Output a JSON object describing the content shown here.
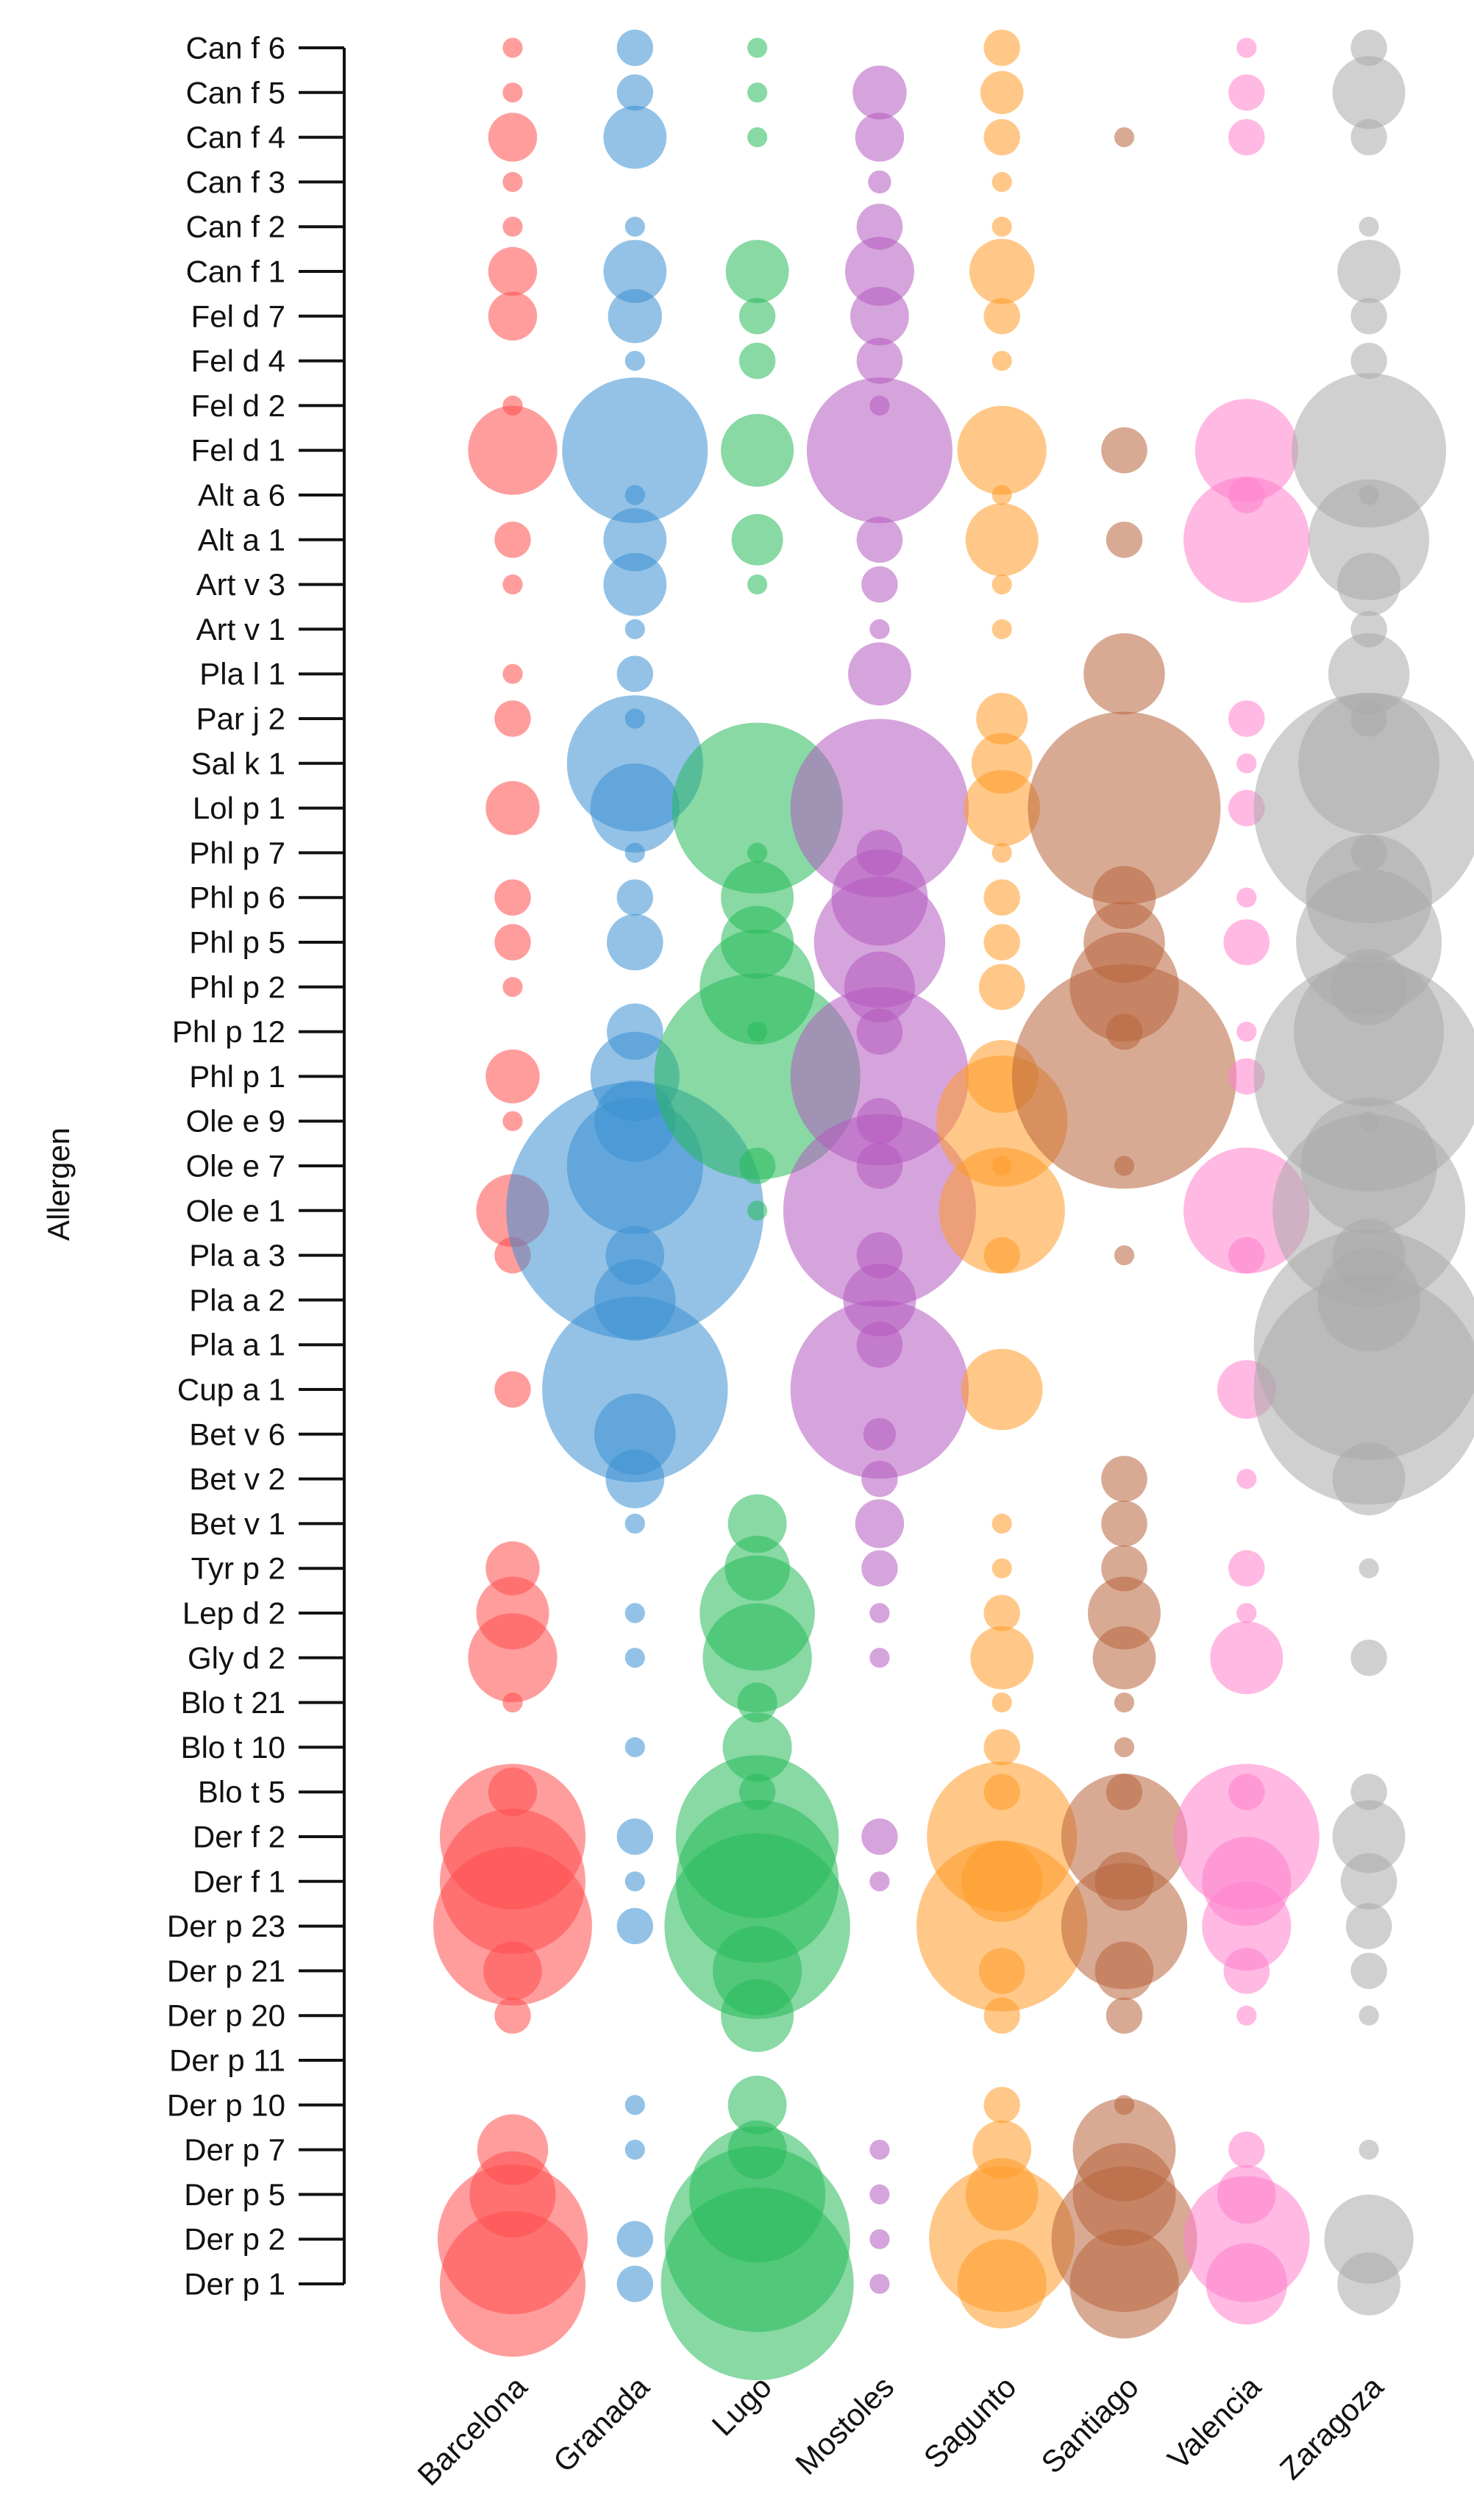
{
  "chart_data": {
    "type": "scatter",
    "subtype": "bubble",
    "title": "",
    "xlabel": "",
    "ylabel": "Allergen",
    "ylabel_text": "Allergen",
    "categories": [
      "Barcelona",
      "Granada",
      "Lugo",
      "Mostoles",
      "Sagunto",
      "Santiago",
      "Valencia",
      "Zaragoza"
    ],
    "colors": [
      "#ff4d4d",
      "#3b8fd1",
      "#27b95a",
      "#b45ac0",
      "#ff9a26",
      "#b8643c",
      "#ff7fcc",
      "#aaaaaa"
    ],
    "allergens": [
      "Can f 6",
      "Can f 5",
      "Can f 4",
      "Can f 3",
      "Can f 2",
      "Can f 1",
      "Fel d 7",
      "Fel d 4",
      "Fel d 2",
      "Fel d 1",
      "Alt a 6",
      "Alt a 1",
      "Art v 3",
      "Art v 1",
      "Pla l 1",
      "Par j 2",
      "Sal k 1",
      "Lol p 1",
      "Phl p 7",
      "Phl p 6",
      "Phl p 5",
      "Phl p 2",
      "Phl p 12",
      "Phl p 1",
      "Ole e 9",
      "Ole e 7",
      "Ole e 1",
      "Pla a 3",
      "Pla a 2",
      "Pla a 1",
      "Cup a 1",
      "Bet v 6",
      "Bet v 2",
      "Bet v 1",
      "Tyr p 2",
      "Lep d 2",
      "Gly d 2",
      "Blo t 21",
      "Blo t 10",
      "Blo t 5",
      "Der f 2",
      "Der f 1",
      "Der p 23",
      "Der p 21",
      "Der p 20",
      "Der p 11",
      "Der p 10",
      "Der p 7",
      "Der p 5",
      "Der p 2",
      "Der p 1"
    ],
    "series": [
      {
        "name": "Barcelona",
        "values": [
          0.15,
          0.15,
          0.9,
          0.15,
          0.15,
          0.9,
          0.9,
          0,
          0.15,
          3,
          0,
          0.5,
          0.15,
          0,
          0.15,
          0.5,
          0,
          1.1,
          0,
          0.5,
          0.5,
          0.15,
          0,
          1.1,
          0.15,
          0,
          2,
          0.5,
          0,
          0,
          0.5,
          0,
          0,
          0,
          1.1,
          2,
          3,
          0.15,
          0,
          0.9,
          8,
          8,
          9.5,
          1.3,
          0.5,
          0,
          0,
          1.9,
          2.8,
          8.5,
          8
        ]
      },
      {
        "name": "Granada",
        "values": [
          0.5,
          0.5,
          1.5,
          0,
          0.15,
          1.5,
          1.1,
          0.15,
          0,
          8,
          0.15,
          1.5,
          1.5,
          0.15,
          0.5,
          0.15,
          7,
          3,
          0.15,
          0.5,
          1.2,
          0,
          1.2,
          3,
          2.5,
          7,
          25,
          1.3,
          2.5,
          0,
          13,
          2.5,
          1.3,
          0.15,
          0,
          0.15,
          0.15,
          0,
          0.15,
          0,
          0.5,
          0.15,
          0.5,
          0,
          0,
          0,
          0.15,
          0.15,
          0,
          0.5,
          0.5
        ]
      },
      {
        "name": "Lugo",
        "values": [
          0.15,
          0.15,
          0.15,
          0,
          0,
          1.5,
          0.5,
          0.5,
          0,
          2,
          0,
          1,
          0.15,
          0,
          0,
          0,
          0,
          11,
          0.15,
          2,
          2,
          5,
          0.15,
          16,
          0,
          0.5,
          0.15,
          0,
          0,
          0,
          0,
          0,
          0,
          1.3,
          1.6,
          5,
          4.5,
          0.6,
          1.8,
          0.5,
          10,
          10,
          13,
          3,
          2,
          0,
          1.3,
          1.3,
          7,
          13,
          14
        ]
      },
      {
        "name": "Mostoles",
        "values": [
          0,
          1.1,
          0.9,
          0.2,
          0.8,
          1.8,
          1.3,
          0.8,
          0.15,
          8,
          0,
          0.8,
          0.5,
          0.15,
          1.5,
          0,
          0,
          12,
          0.8,
          3.5,
          6.5,
          1.9,
          0.8,
          12,
          0.8,
          0.8,
          14,
          0.8,
          2,
          0.8,
          12,
          0.4,
          0.5,
          0.9,
          0.5,
          0.15,
          0.15,
          0,
          0,
          0,
          0.5,
          0.15,
          0,
          0,
          0,
          0,
          0,
          0.15,
          0.15,
          0.15,
          0.15
        ]
      },
      {
        "name": "Sagunto",
        "values": [
          0.5,
          0.7,
          0.5,
          0.15,
          0.15,
          1.6,
          0.5,
          0.15,
          0,
          3,
          0.15,
          2,
          0.15,
          0.15,
          0,
          1,
          1.4,
          2.2,
          0.15,
          0.5,
          0.5,
          0.8,
          0,
          2,
          6.5,
          0.15,
          6,
          0.5,
          0,
          0,
          2.5,
          0,
          0,
          0.15,
          0.15,
          0.5,
          1.5,
          0.15,
          0.5,
          0.5,
          8.5,
          2.5,
          11,
          0.8,
          0.5,
          0,
          0.5,
          1.3,
          2,
          8,
          3
        ]
      },
      {
        "name": "Santiago",
        "values": [
          0,
          0,
          0.15,
          0,
          0,
          0,
          0,
          0,
          0,
          0.8,
          0,
          0.5,
          0,
          0,
          2.5,
          0,
          0,
          14,
          0,
          1.5,
          2.5,
          4.5,
          0.5,
          19,
          0,
          0.15,
          0,
          0.15,
          0,
          0,
          0,
          0,
          0.8,
          0.8,
          0.8,
          2,
          1.5,
          0.15,
          0.15,
          0.5,
          6,
          1.3,
          6,
          1.3,
          0.5,
          0,
          0.15,
          4,
          4,
          8,
          4.5
        ]
      },
      {
        "name": "Valencia",
        "values": [
          0.15,
          0.5,
          0.5,
          0,
          0,
          0,
          0,
          0,
          0,
          4,
          0.5,
          6,
          0,
          0,
          0,
          0.5,
          0.15,
          0.5,
          0,
          0.15,
          0.8,
          0,
          0.15,
          0.5,
          0,
          0,
          6,
          0.5,
          0,
          0,
          1.3,
          0,
          0.15,
          0,
          0.5,
          0.15,
          2,
          0,
          0,
          0.5,
          8,
          3,
          3,
          0.8,
          0.15,
          0,
          0,
          0.5,
          1.3,
          6,
          2.5
        ]
      },
      {
        "name": "Zaragoza",
        "values": [
          0.5,
          2,
          0.5,
          0,
          0.15,
          1.5,
          0.5,
          0.5,
          0,
          9,
          0.15,
          5.5,
          1.5,
          0.5,
          2.5,
          0.5,
          7.5,
          20,
          0.5,
          6,
          8,
          2.2,
          8.5,
          20,
          0.15,
          7,
          14,
          2,
          4,
          20,
          20,
          0,
          2,
          0,
          0.15,
          0,
          0.5,
          0,
          0,
          0.5,
          2,
          1.2,
          0.8,
          0.5,
          0.15,
          0,
          0,
          0.15,
          0,
          3,
          1.5
        ]
      }
    ]
  }
}
